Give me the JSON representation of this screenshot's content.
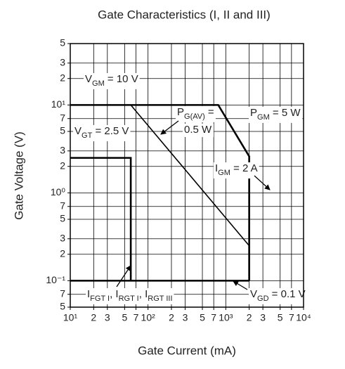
{
  "chart_data": {
    "type": "line",
    "title": "Gate Characteristics  (I, II and III)",
    "xlabel": "Gate Current  (mA)",
    "ylabel": "Gate Voltage  (V)",
    "xscale": "log",
    "yscale": "log",
    "grid": true,
    "xlim": [
      10,
      10000
    ],
    "ylim": [
      0.05,
      50
    ],
    "xticks": [
      {
        "value": 10,
        "label": "10¹"
      },
      {
        "value": 20,
        "label": "2"
      },
      {
        "value": 30,
        "label": "3"
      },
      {
        "value": 50,
        "label": "5"
      },
      {
        "value": 70,
        "label": "7"
      },
      {
        "value": 100,
        "label": "10²"
      },
      {
        "value": 200,
        "label": "2"
      },
      {
        "value": 300,
        "label": "3"
      },
      {
        "value": 500,
        "label": "5"
      },
      {
        "value": 700,
        "label": "7"
      },
      {
        "value": 1000,
        "label": "10³"
      },
      {
        "value": 2000,
        "label": "2"
      },
      {
        "value": 3000,
        "label": "3"
      },
      {
        "value": 5000,
        "label": "5"
      },
      {
        "value": 7000,
        "label": "7"
      },
      {
        "value": 10000,
        "label": "10⁴"
      }
    ],
    "yticks": [
      {
        "value": 50,
        "label": "5"
      },
      {
        "value": 30,
        "label": "3"
      },
      {
        "value": 20,
        "label": "2"
      },
      {
        "value": 10,
        "label": "10¹"
      },
      {
        "value": 7,
        "label": "7"
      },
      5,
      3,
      2,
      {
        "value": 1,
        "label": "10⁰"
      },
      {
        "value": 0.7,
        "label": "7"
      },
      {
        "value": 0.5,
        "label": "5"
      },
      {
        "value": 0.3,
        "label": "3"
      },
      {
        "value": 0.2,
        "label": "2"
      },
      {
        "value": 0.1,
        "label": "10⁻¹"
      },
      {
        "value": 0.07,
        "label": "7"
      },
      {
        "value": 0.05,
        "label": "5"
      }
    ],
    "color": "#000000",
    "lines": [
      {
        "style": "thick",
        "x": [
          10,
          800,
          2000,
          2000
        ],
        "y": [
          10,
          10,
          2.6,
          0.1
        ]
      },
      {
        "style": "thick",
        "x": [
          10,
          2000
        ],
        "y": [
          0.1,
          0.1
        ]
      },
      {
        "style": "thick",
        "x": [
          10,
          60,
          60
        ],
        "y": [
          2.5,
          2.5,
          0.1
        ]
      },
      {
        "style": "thin",
        "x": [
          60,
          2000
        ],
        "y": [
          10,
          0.25
        ]
      }
    ],
    "annotations": [
      {
        "segments": [
          {
            "text": "V"
          },
          {
            "text": "GM",
            "sub": true
          },
          {
            "text": " = 10 V"
          }
        ]
      },
      {
        "segments": [
          {
            "text": "P"
          },
          {
            "text": "G(AV)",
            "sub": true
          },
          {
            "text": " ="
          }
        ]
      },
      {
        "segments": [
          {
            "text": "0.5 W"
          }
        ]
      },
      {
        "segments": [
          {
            "text": "P"
          },
          {
            "text": "GM",
            "sub": true
          },
          {
            "text": " = 5 W"
          }
        ]
      },
      {
        "segments": [
          {
            "text": "V"
          },
          {
            "text": "GT",
            "sub": true
          },
          {
            "text": " = 2.5 V"
          }
        ]
      },
      {
        "segments": [
          {
            "text": "I"
          },
          {
            "text": "GM",
            "sub": true
          },
          {
            "text": " = 2 A"
          }
        ]
      },
      {
        "segments": [
          {
            "text": "I"
          },
          {
            "text": "FGT I",
            "sub": true
          },
          {
            "text": ", I"
          },
          {
            "text": "RGT I",
            "sub": true
          },
          {
            "text": ", I"
          },
          {
            "text": "RGT III",
            "sub": true
          }
        ]
      },
      {
        "segments": [
          {
            "text": "V"
          },
          {
            "text": "GD",
            "sub": true
          },
          {
            "text": " = 0.1 V"
          }
        ]
      }
    ]
  }
}
